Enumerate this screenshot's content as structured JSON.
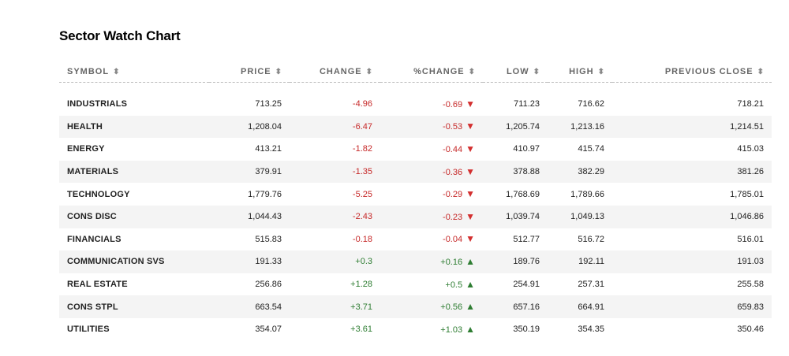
{
  "title": "Sector Watch Chart",
  "colors": {
    "negative": "#c62828",
    "positive": "#2e7d32",
    "row_alt": "#f4f4f4"
  },
  "columns": [
    "SYMBOL",
    "PRICE",
    "CHANGE",
    "%CHANGE",
    "LOW",
    "HIGH",
    "PREVIOUS CLOSE"
  ],
  "rows": [
    {
      "symbol": "INDUSTRIALS",
      "price": "713.25",
      "change": "-4.96",
      "pct_change": "-0.69",
      "direction": "down",
      "low": "711.23",
      "high": "716.62",
      "prev_close": "718.21"
    },
    {
      "symbol": "HEALTH",
      "price": "1,208.04",
      "change": "-6.47",
      "pct_change": "-0.53",
      "direction": "down",
      "low": "1,205.74",
      "high": "1,213.16",
      "prev_close": "1,214.51"
    },
    {
      "symbol": "ENERGY",
      "price": "413.21",
      "change": "-1.82",
      "pct_change": "-0.44",
      "direction": "down",
      "low": "410.97",
      "high": "415.74",
      "prev_close": "415.03"
    },
    {
      "symbol": "MATERIALS",
      "price": "379.91",
      "change": "-1.35",
      "pct_change": "-0.36",
      "direction": "down",
      "low": "378.88",
      "high": "382.29",
      "prev_close": "381.26"
    },
    {
      "symbol": "TECHNOLOGY",
      "price": "1,779.76",
      "change": "-5.25",
      "pct_change": "-0.29",
      "direction": "down",
      "low": "1,768.69",
      "high": "1,789.66",
      "prev_close": "1,785.01"
    },
    {
      "symbol": "CONS DISC",
      "price": "1,044.43",
      "change": "-2.43",
      "pct_change": "-0.23",
      "direction": "down",
      "low": "1,039.74",
      "high": "1,049.13",
      "prev_close": "1,046.86"
    },
    {
      "symbol": "FINANCIALS",
      "price": "515.83",
      "change": "-0.18",
      "pct_change": "-0.04",
      "direction": "down",
      "low": "512.77",
      "high": "516.72",
      "prev_close": "516.01"
    },
    {
      "symbol": "COMMUNICATION SVS",
      "price": "191.33",
      "change": "+0.3",
      "pct_change": "+0.16",
      "direction": "up",
      "low": "189.76",
      "high": "192.11",
      "prev_close": "191.03"
    },
    {
      "symbol": "REAL ESTATE",
      "price": "256.86",
      "change": "+1.28",
      "pct_change": "+0.5",
      "direction": "up",
      "low": "254.91",
      "high": "257.31",
      "prev_close": "255.58"
    },
    {
      "symbol": "CONS STPL",
      "price": "663.54",
      "change": "+3.71",
      "pct_change": "+0.56",
      "direction": "up",
      "low": "657.16",
      "high": "664.91",
      "prev_close": "659.83"
    },
    {
      "symbol": "UTILITIES",
      "price": "354.07",
      "change": "+3.61",
      "pct_change": "+1.03",
      "direction": "up",
      "low": "350.19",
      "high": "354.35",
      "prev_close": "350.46"
    }
  ]
}
